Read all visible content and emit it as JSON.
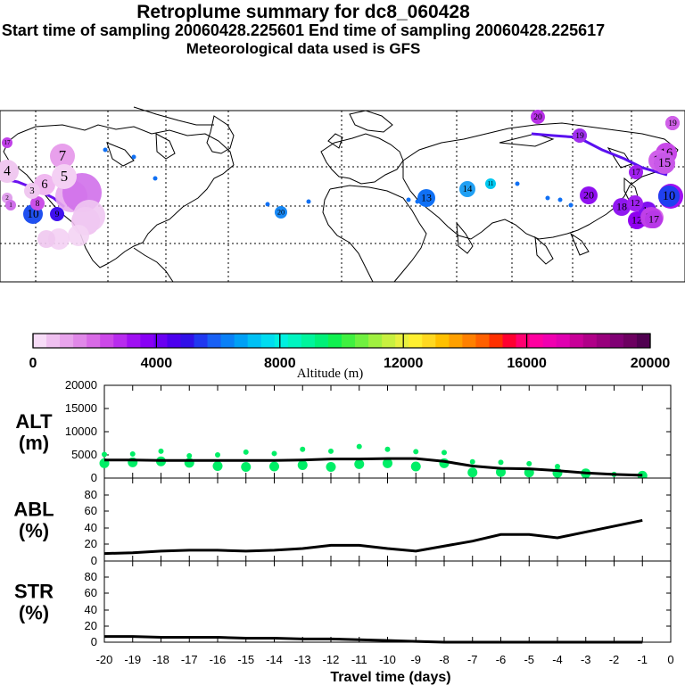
{
  "header": {
    "title": "Retroplume summary for dc8_060428",
    "sampling": "Start time of sampling 20060428.225601     End time of sampling 20060428.225617",
    "met": "Meteorological data used is GFS"
  },
  "colorbar": {
    "tick_labels": [
      "0",
      "4000",
      "8000",
      "12000",
      "16000",
      "20000"
    ],
    "label": "Altitude (m)",
    "colors": [
      "#f7dcf7",
      "#efc0f0",
      "#e8a4ec",
      "#e088e8",
      "#d86ae6",
      "#cc48e8",
      "#b82cee",
      "#a010f2",
      "#8800f4",
      "#6a00f2",
      "#4c00ee",
      "#3010e8",
      "#2038f0",
      "#1860f4",
      "#0a80f6",
      "#00a0f6",
      "#00c0f4",
      "#00dcf0",
      "#00f0e0",
      "#00f4c0",
      "#00f49c",
      "#00f078",
      "#10f050",
      "#40f040",
      "#70f040",
      "#a0f040",
      "#c8f040",
      "#e8f040",
      "#ffef30",
      "#ffd820",
      "#ffc000",
      "#ffa000",
      "#ff8000",
      "#ff6000",
      "#ff3000",
      "#ff0030",
      "#ff0070",
      "#ff00a0",
      "#f000b0",
      "#e000b0",
      "#c80098",
      "#b00088",
      "#98007c",
      "#800074",
      "#6c0060",
      "#500050"
    ]
  },
  "map": {
    "labels": [
      {
        "t": "20",
        "color": "#b830e8"
      },
      {
        "t": "19",
        "color": "#c040e8"
      },
      {
        "t": "18",
        "color": "#b030ea"
      },
      {
        "t": "17",
        "color": "#a020ee"
      },
      {
        "t": "16",
        "color": "#c848e8"
      },
      {
        "t": "15",
        "color": "#d060ea"
      },
      {
        "t": "14",
        "color": "#d868ea"
      },
      {
        "t": "13",
        "color": "#c040ea"
      },
      {
        "t": "12",
        "color": "#9000f0"
      },
      {
        "t": "11",
        "color": "#a010f0"
      },
      {
        "t": "10",
        "color": "#2050f0"
      },
      {
        "t": "9",
        "color": "#4010ee"
      },
      {
        "t": "8",
        "color": "#cc50e8"
      },
      {
        "t": "7",
        "color": "#e8a0ec"
      },
      {
        "t": "6",
        "color": "#f0b8f0"
      },
      {
        "t": "5",
        "color": "#f4d0f4"
      },
      {
        "t": "4",
        "color": "#f0c8f0"
      },
      {
        "t": "3",
        "color": "#f0c8f0"
      },
      {
        "t": "2",
        "color": "#e0a0ec"
      },
      {
        "t": "1",
        "color": "#d070ea"
      },
      {
        "t": "20",
        "color": "#1888f4"
      },
      {
        "t": "14",
        "color": "#20a0f4"
      },
      {
        "t": "13",
        "color": "#1070f4"
      },
      {
        "t": "11",
        "color": "#00c8f0"
      },
      {
        "t": "20",
        "color": "#9010f0"
      },
      {
        "t": "18",
        "color": "#9018f0"
      },
      {
        "t": "10",
        "color": "#2040f0"
      },
      {
        "t": "11",
        "color": "#8010f0"
      },
      {
        "t": "12",
        "color": "#a020f0"
      },
      {
        "t": "14",
        "color": "#c040e8"
      },
      {
        "t": "17",
        "color": "#b838e8"
      },
      {
        "t": "19",
        "color": "#d060e8"
      },
      {
        "t": "15",
        "color": "#c858e8"
      },
      {
        "t": "17",
        "color": "#c040e8"
      },
      {
        "t": "19",
        "color": "#a030ee"
      }
    ]
  },
  "chart_data": [
    {
      "type": "scatter",
      "panel": "ALT",
      "ylabel": "ALT\n(m)",
      "ylabel_lines": [
        "ALT",
        "(m)"
      ],
      "xlabel": "Travel time (days)",
      "ylim": [
        0,
        20000
      ],
      "xlim": [
        -20,
        0
      ],
      "y_ticks": [
        "20000",
        "15000",
        "10000",
        "5000",
        "0"
      ],
      "x_ticks": [
        "-20",
        "-19",
        "-18",
        "-17",
        "-16",
        "-15",
        "-14",
        "-13",
        "-12",
        "-11",
        "-10",
        "-9",
        "-8",
        "-7",
        "-6",
        "-5",
        "-4",
        "-3",
        "-2",
        "-1",
        "0"
      ],
      "median_line": {
        "x": [
          -20,
          -19,
          -18,
          -17,
          -16,
          -15,
          -14,
          -13,
          -12,
          -11,
          -10,
          -9,
          -8,
          -7,
          -6,
          -5,
          -4,
          -3,
          -2,
          -1
        ],
        "y": [
          3900,
          3900,
          3800,
          3800,
          3800,
          3800,
          3800,
          3900,
          4100,
          4100,
          4200,
          4200,
          3600,
          2600,
          2100,
          2000,
          1600,
          1100,
          800,
          600
        ]
      },
      "scatter": {
        "color": "#00ee66",
        "x": [
          -20,
          -20,
          -19,
          -19,
          -18,
          -18,
          -17,
          -17,
          -16,
          -16,
          -15,
          -15,
          -14,
          -14,
          -13,
          -13,
          -12,
          -12,
          -11,
          -11,
          -10,
          -10,
          -9,
          -9,
          -8,
          -8,
          -7,
          -7,
          -6,
          -6,
          -5,
          -5,
          -4,
          -4,
          -3,
          -2,
          -1
        ],
        "y": [
          3200,
          5100,
          3400,
          5200,
          3600,
          5800,
          3300,
          4800,
          2600,
          5000,
          2400,
          5600,
          2500,
          5300,
          2800,
          6200,
          2400,
          5800,
          3000,
          6800,
          3200,
          6200,
          2500,
          5700,
          3200,
          5500,
          1200,
          3500,
          1300,
          3400,
          1200,
          3100,
          1100,
          2500,
          1000,
          800,
          500
        ]
      }
    },
    {
      "type": "line",
      "panel": "ABL",
      "ylabel": "ABL\n(%)",
      "ylabel_lines": [
        "ABL",
        "(%)"
      ],
      "ylim": [
        0,
        100
      ],
      "y_ticks": [
        "80",
        "60",
        "40",
        "20",
        "0"
      ],
      "x": [
        -20,
        -19,
        -18,
        -17,
        -16,
        -15,
        -14,
        -13,
        -12,
        -11,
        -10,
        -9,
        -8,
        -7,
        -6,
        -5,
        -4,
        -3,
        -2,
        -1
      ],
      "y": [
        9,
        10,
        12,
        13,
        13,
        12,
        13,
        15,
        19,
        19,
        15,
        12,
        18,
        24,
        32,
        32,
        28,
        35,
        42,
        49
      ]
    },
    {
      "type": "line",
      "panel": "STR",
      "ylabel": "STR\n(%)",
      "ylabel_lines": [
        "STR",
        "(%)"
      ],
      "ylim": [
        0,
        100
      ],
      "y_ticks": [
        "80",
        "60",
        "40",
        "20",
        "0"
      ],
      "x": [
        -20,
        -19,
        -18,
        -17,
        -16,
        -15,
        -14,
        -13,
        -12,
        -11,
        -10,
        -9,
        -8,
        -7,
        -6,
        -5,
        -4,
        -3,
        -2,
        -1
      ],
      "y": [
        7,
        7,
        6,
        6,
        6,
        5,
        5,
        4,
        4,
        3,
        2,
        1,
        0,
        0,
        0,
        0,
        0,
        0,
        0,
        0
      ]
    }
  ]
}
